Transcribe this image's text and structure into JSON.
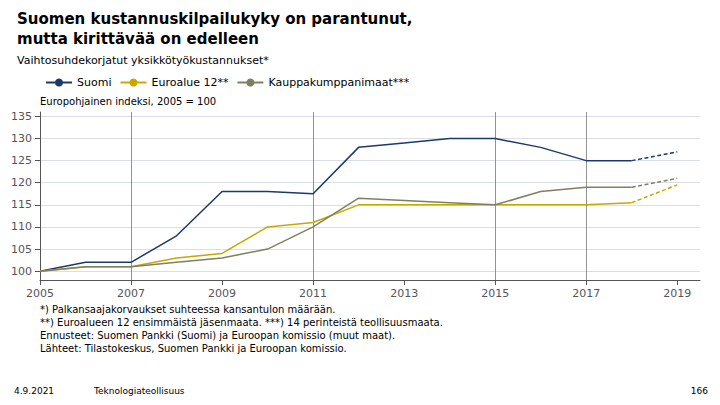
{
  "chart_data": {
    "type": "line",
    "title": "Suomen kustannuskilpailukyky on parantunut,\nmutta kirittävää on edelleen",
    "subtitle": "Vaihtosuhdekorjatut yksikkötyökustannukset*",
    "ylabel": "Europohjainen indeksi, 2005 = 100",
    "footnotes": [
      "*) Palkansaajakorvaukset suhteessa kansantulon määrään.",
      "**) Euroalueen 12 ensimmäistä jäsenmaata. ***) 14 perinteistä teollisuusmaata.",
      "Ennusteet: Suomen Pankki (Suomi) ja Euroopan komissio (muut maat).",
      "Lähteet: Tilastokeskus, Suomen Pankki ja Euroopan komissio."
    ],
    "annotations": [
      "4.9.2021",
      "Teknologiateollisuus",
      "166"
    ],
    "x": [
      2005,
      2006,
      2007,
      2008,
      2009,
      2010,
      2011,
      2012,
      2013,
      2014,
      2015,
      2016,
      2017,
      2018,
      2019
    ],
    "series": [
      {
        "name": "Suomi",
        "color": "#1a3a6b",
        "line_style": "solid",
        "values": [
          100,
          102,
          102,
          108,
          118,
          118,
          117.5,
          128,
          129,
          130,
          130,
          128,
          125,
          125,
          null
        ]
      },
      {
        "name": "Euroalue 12**",
        "color": "#c8a800",
        "line_style": "solid",
        "values": [
          100,
          101,
          101,
          103,
          104,
          110,
          111,
          115,
          115,
          115,
          115,
          115,
          115,
          115.5,
          null
        ]
      },
      {
        "name": "Kauppakumppanimaat***",
        "color": "#808060",
        "line_style": "solid",
        "values": [
          100,
          101,
          101,
          102,
          103,
          105,
          110,
          116.5,
          116,
          115.5,
          115,
          118,
          119,
          119,
          null
        ]
      },
      {
        "name": "Suomi",
        "color": "#1a3a6b",
        "line_style": "dashed",
        "values": [
          null,
          null,
          null,
          null,
          null,
          null,
          null,
          null,
          null,
          null,
          null,
          null,
          null,
          125,
          127
        ]
      },
      {
        "name": "Euroalue 12**",
        "color": "#c8a800",
        "line_style": "dashed",
        "values": [
          null,
          null,
          null,
          null,
          null,
          null,
          null,
          null,
          null,
          null,
          null,
          null,
          null,
          115.5,
          119.5
        ]
      },
      {
        "name": "Kauppakumppanimaat***",
        "color": "#808060",
        "line_style": "dashed",
        "values": [
          null,
          null,
          null,
          null,
          null,
          null,
          null,
          null,
          null,
          null,
          null,
          null,
          null,
          119,
          121
        ]
      }
    ],
    "vlines": [
      2007,
      2011,
      2015,
      2017
    ],
    "xlim": [
      2005,
      2019.5
    ],
    "xticks": [
      2005,
      2007,
      2009,
      2011,
      2013,
      2015,
      2017,
      2019
    ],
    "ylim": [
      98,
      136
    ],
    "yticks": [
      100,
      105,
      110,
      115,
      120,
      125,
      130,
      135
    ],
    "grid": true,
    "legend": "upper left"
  }
}
